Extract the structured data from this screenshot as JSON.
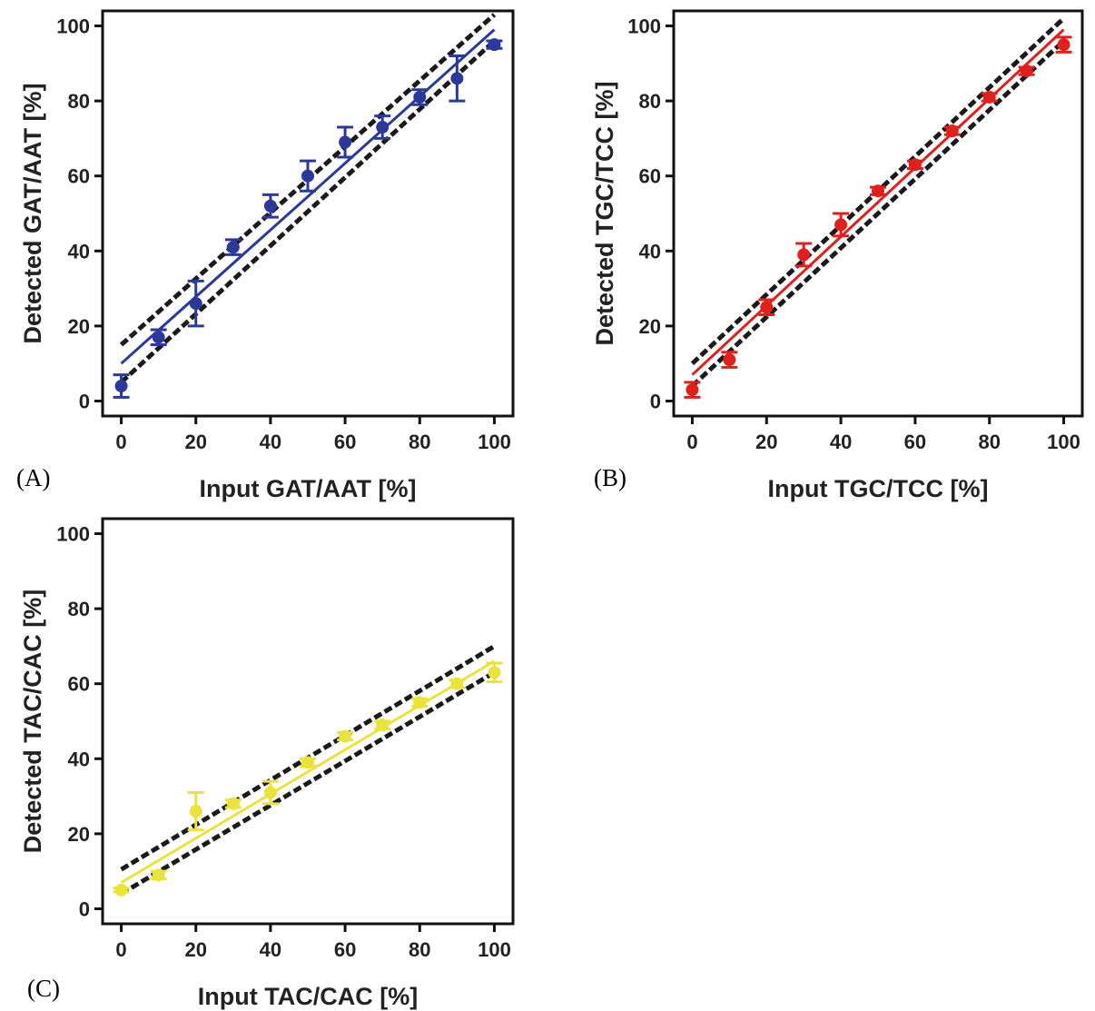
{
  "chart_data": [
    {
      "panel_label": "(A)",
      "type": "scatter",
      "xlabel": "Input GAT/AAT [%]",
      "ylabel": "Detected GAT/AAT [%]",
      "xlim": [
        -5,
        105
      ],
      "ylim": [
        -4,
        104
      ],
      "xticks": [
        0,
        20,
        40,
        60,
        80,
        100
      ],
      "yticks": [
        0,
        20,
        40,
        60,
        80,
        100
      ],
      "color": "#2b3a9a",
      "points": {
        "x": [
          0,
          10,
          20,
          30,
          40,
          50,
          60,
          70,
          80,
          90,
          100
        ],
        "y": [
          4,
          17,
          26,
          41,
          52,
          60,
          69,
          73,
          81,
          86,
          95
        ],
        "err": [
          3,
          2,
          6,
          2,
          3,
          4,
          4,
          3,
          2,
          6,
          1
        ]
      },
      "fit": {
        "x": [
          0,
          100
        ],
        "y": [
          10,
          99
        ]
      },
      "confidence_upper": {
        "x": [
          0,
          100
        ],
        "y": [
          15,
          103
        ]
      },
      "confidence_lower": {
        "x": [
          0,
          100
        ],
        "y": [
          5,
          96
        ]
      }
    },
    {
      "panel_label": "(B)",
      "type": "scatter",
      "xlabel": "Input TGC/TCC [%]",
      "ylabel": "Detected TGC/TCC [%]",
      "xlim": [
        -5,
        105
      ],
      "ylim": [
        -4,
        104
      ],
      "xticks": [
        0,
        20,
        40,
        60,
        80,
        100
      ],
      "yticks": [
        0,
        20,
        40,
        60,
        80,
        100
      ],
      "color": "#e0201c",
      "points": {
        "x": [
          0,
          10,
          20,
          30,
          40,
          50,
          60,
          70,
          80,
          90,
          100
        ],
        "y": [
          3,
          11,
          25,
          39,
          47,
          56,
          63,
          72,
          81,
          88,
          95
        ],
        "err": [
          2,
          2,
          2,
          3,
          3,
          1,
          1,
          1,
          1,
          1,
          2
        ]
      },
      "fit": {
        "x": [
          0,
          100
        ],
        "y": [
          7,
          99
        ]
      },
      "confidence_upper": {
        "x": [
          0,
          100
        ],
        "y": [
          10,
          102
        ]
      },
      "confidence_lower": {
        "x": [
          0,
          100
        ],
        "y": [
          4,
          96
        ]
      }
    },
    {
      "panel_label": "(C)",
      "type": "scatter",
      "xlabel": "Input TAC/CAC [%]",
      "ylabel": "Detected TAC/CAC [%]",
      "xlim": [
        -5,
        105
      ],
      "ylim": [
        -4,
        104
      ],
      "xticks": [
        0,
        20,
        40,
        60,
        80,
        100
      ],
      "yticks": [
        0,
        20,
        40,
        60,
        80,
        100
      ],
      "color": "#e9e33b",
      "points": {
        "x": [
          0,
          10,
          20,
          30,
          40,
          50,
          60,
          70,
          80,
          90,
          100
        ],
        "y": [
          5,
          9,
          26,
          28,
          31,
          39,
          46,
          49,
          55,
          60,
          63
        ],
        "err": [
          0.5,
          1,
          5,
          1,
          3,
          1,
          1,
          1,
          1,
          1,
          2.5
        ]
      },
      "fit": {
        "x": [
          0,
          100
        ],
        "y": [
          7,
          66
        ]
      },
      "confidence_upper": {
        "x": [
          0,
          100
        ],
        "y": [
          10.5,
          70
        ]
      },
      "confidence_lower": {
        "x": [
          0,
          100
        ],
        "y": [
          4,
          63
        ]
      }
    }
  ]
}
